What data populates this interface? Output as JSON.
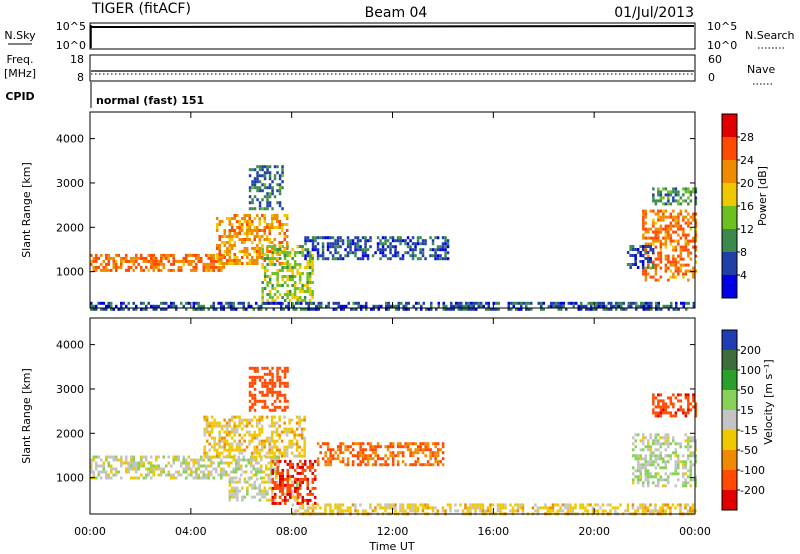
{
  "header": {
    "radar": "TIGER (fitACF)",
    "beam": "Beam 04",
    "date": "01/Jul/2013"
  },
  "nsky_panel": {
    "label": "N.Sky",
    "right_label": "N.Search",
    "left_ticks": [
      "10^5",
      "10^0"
    ],
    "right_ticks": [
      "10^5",
      "10^0"
    ]
  },
  "freq_panel": {
    "label_line1": "Freq.",
    "label_line2": "[MHz]",
    "right_label": "Nave",
    "left_ticks": [
      "18",
      "8"
    ],
    "right_ticks": [
      "60",
      "0"
    ]
  },
  "cpid_panel": {
    "label": "CPID",
    "mode": "normal (fast) 151"
  },
  "power_panel": {
    "ylabel": "Slant Range [km]",
    "cbar_label": "Power [dB]",
    "cbar_ticks": [
      "28",
      "24",
      "20",
      "16",
      "12",
      "8",
      "4"
    ],
    "colors": [
      "#e00000",
      "#ff4a00",
      "#f08a00",
      "#f0c800",
      "#6cc020",
      "#3a8a50",
      "#2040a8",
      "#0000e6"
    ]
  },
  "velocity_panel": {
    "ylabel": "Slant Range [km]",
    "cbar_label": "Velocity [m s⁻¹]",
    "cbar_ticks": [
      "200",
      "100",
      "50",
      "15",
      "-15",
      "-50",
      "-100",
      "-200"
    ],
    "colors": [
      "#1e3cb4",
      "#3c6e3c",
      "#2aa02a",
      "#88d25a",
      "#c4c4c4",
      "#f0c800",
      "#f08a00",
      "#ff4a00",
      "#e00000"
    ]
  },
  "time_axis": {
    "label": "Time UT",
    "ticks": [
      "00:00",
      "04:00",
      "08:00",
      "12:00",
      "16:00",
      "20:00",
      "00:00"
    ]
  },
  "chart_data": [
    {
      "type": "heatmap",
      "name": "power",
      "xlabel": "Time UT",
      "ylabel": "Slant Range [km]",
      "xlim": [
        0,
        24
      ],
      "ylim": [
        180,
        4600
      ],
      "yticks": [
        1000,
        2000,
        3000,
        4000
      ],
      "colorbar": {
        "label": "Power [dB]",
        "range": [
          0,
          30
        ],
        "ticks": [
          4,
          8,
          12,
          16,
          20,
          24,
          28
        ]
      },
      "regions": [
        {
          "t_start": 0.0,
          "t_end": 5.3,
          "range_low": 1000,
          "range_high": 1400,
          "power_db": 22
        },
        {
          "t_start": 5.0,
          "t_end": 7.8,
          "range_low": 1200,
          "range_high": 2300,
          "power_db": 20
        },
        {
          "t_start": 6.8,
          "t_end": 8.8,
          "range_low": 300,
          "range_high": 1600,
          "power_db": 14
        },
        {
          "t_start": 6.3,
          "t_end": 7.6,
          "range_low": 2400,
          "range_high": 3400,
          "power_db": 8
        },
        {
          "t_start": 8.5,
          "t_end": 14.2,
          "range_low": 1300,
          "range_high": 1800,
          "power_db": 6
        },
        {
          "t_start": 21.9,
          "t_end": 24.0,
          "range_low": 800,
          "range_high": 2400,
          "power_db": 22
        },
        {
          "t_start": 21.3,
          "t_end": 22.3,
          "range_low": 1100,
          "range_high": 1600,
          "power_db": 6
        },
        {
          "t_start": 22.3,
          "t_end": 24.0,
          "range_low": 2500,
          "range_high": 2900,
          "power_db": 10
        },
        {
          "t_start": 0.0,
          "t_end": 24.0,
          "range_low": 180,
          "range_high": 320,
          "power_db": 6
        }
      ]
    },
    {
      "type": "heatmap",
      "name": "velocity",
      "xlabel": "Time UT",
      "ylabel": "Slant Range [km]",
      "xlim": [
        0,
        24
      ],
      "ylim": [
        180,
        4600
      ],
      "yticks": [
        1000,
        2000,
        3000,
        4000
      ],
      "colorbar": {
        "label": "Velocity [m s⁻¹]",
        "range": [
          -250,
          250
        ],
        "ticks": [
          200,
          100,
          50,
          15,
          -15,
          -50,
          -100,
          -200
        ]
      },
      "regions": [
        {
          "t_start": 0.0,
          "t_end": 7.5,
          "range_low": 1000,
          "range_high": 1500,
          "velocity": 0
        },
        {
          "t_start": 4.5,
          "t_end": 8.5,
          "range_low": 1500,
          "range_high": 2400,
          "velocity": -30
        },
        {
          "t_start": 5.5,
          "t_end": 8.3,
          "range_low": 500,
          "range_high": 1000,
          "velocity": 0
        },
        {
          "t_start": 7.2,
          "t_end": 8.9,
          "range_low": 400,
          "range_high": 1400,
          "velocity": -200
        },
        {
          "t_start": 6.3,
          "t_end": 7.8,
          "range_low": 2500,
          "range_high": 3500,
          "velocity": -150
        },
        {
          "t_start": 9.0,
          "t_end": 14.0,
          "range_low": 1300,
          "range_high": 1800,
          "velocity": -100
        },
        {
          "t_start": 21.5,
          "t_end": 24.0,
          "range_low": 800,
          "range_high": 2000,
          "velocity": 10
        },
        {
          "t_start": 22.3,
          "t_end": 24.0,
          "range_low": 2400,
          "range_high": 2900,
          "velocity": -180
        },
        {
          "t_start": 8.0,
          "t_end": 24.0,
          "range_low": 180,
          "range_high": 420,
          "velocity": -30
        }
      ]
    }
  ]
}
